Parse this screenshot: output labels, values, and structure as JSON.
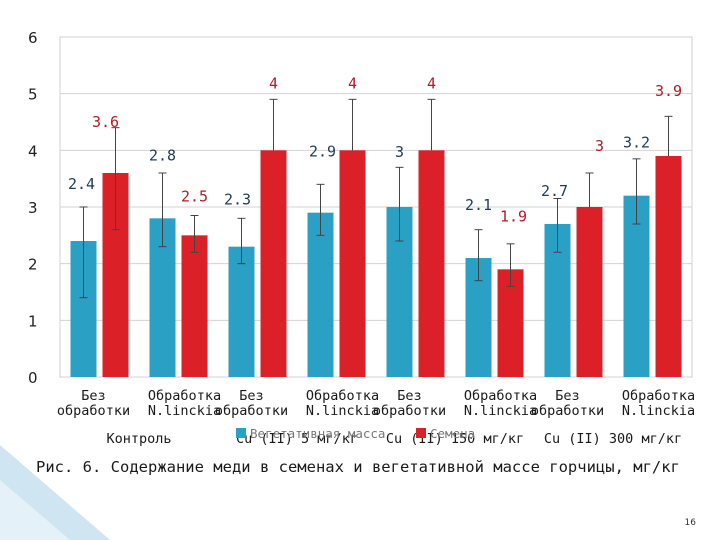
{
  "chart_data": {
    "type": "bar",
    "title": "",
    "xlabel": "",
    "ylabel": "",
    "ylim": [
      0,
      6
    ],
    "yticks": [
      0,
      1,
      2,
      3,
      4,
      5,
      6
    ],
    "grid": true,
    "legend_position": "bottom",
    "categories": [
      "Без обработки",
      "Обработка N.linckia",
      "Без обработки",
      "Обработка N.linckia",
      "Без обработки",
      "Обработка N.linckia",
      "Без обработки",
      "Обработка N.linckia"
    ],
    "category_lines": [
      [
        "Без",
        "обработки"
      ],
      [
        "Обработка",
        "N.linckia"
      ],
      [
        "Без",
        "обработки"
      ],
      [
        "Обработка",
        "N.linckia"
      ],
      [
        "Без",
        "обработки"
      ],
      [
        "Обработка",
        "N.linckia"
      ],
      [
        "Без",
        "обработки"
      ],
      [
        "Обработка",
        "N.linckia"
      ]
    ],
    "groups": [
      "Контроль",
      "Cu (II) 5 мг/кг",
      "Cu (II) 150 мг/кг",
      "Cu (II) 300 мг/кг"
    ],
    "series": [
      {
        "name": "Вегетативная масса",
        "color": "#2aa0c4",
        "label_color": "#1f3a5a",
        "values": [
          2.4,
          2.8,
          2.3,
          2.9,
          3,
          2.1,
          2.7,
          3.2
        ],
        "labels": [
          "2.4",
          "2.8",
          "2.3",
          "2.9",
          "3",
          "2.1",
          "2.7",
          "3.2"
        ]
      },
      {
        "name": "Семена",
        "color": "#dc2027",
        "label_color": "#b01c22",
        "values": [
          3.6,
          2.5,
          4,
          4,
          4,
          1.9,
          3,
          3.9
        ],
        "labels": [
          "3.6",
          "2.5",
          "4",
          "4",
          "4",
          "1.9",
          "3",
          "3.9"
        ]
      }
    ]
  },
  "caption": "Рис. 6. Содержание меди в семенах и вегетативной массе горчицы, мг/кг",
  "page_number": "16"
}
